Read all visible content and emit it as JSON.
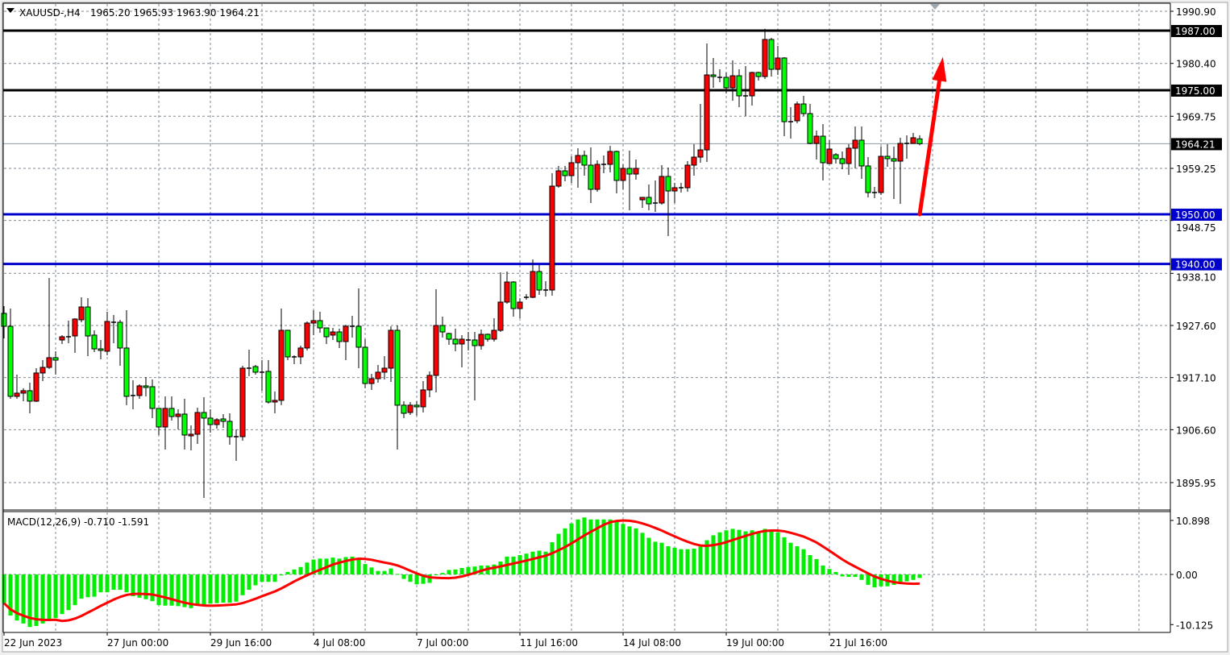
{
  "header": {
    "symbol": "XAUUSD-,H4",
    "ohlc": "1965.20 1965.93 1963.90 1964.21"
  },
  "colors": {
    "bull_body": "#ff0000",
    "bear_body": "#00ff00",
    "wick": "#000000",
    "resistance_line": "#000000",
    "support_line": "#0000cc",
    "arrow": "#ff0000",
    "macd_hist": "#00ee00",
    "macd_signal": "#ff0000",
    "grid": "#7b8a99"
  },
  "icons": {
    "menu": "triangle-down-icon",
    "shift_marker": "triangle-down-icon"
  },
  "chart_data": [
    {
      "type": "candlestick",
      "timeframe": "H4",
      "ylim": [
        1890.6,
        1992.4
      ],
      "grid": true,
      "price_ticks": [
        "1990.90",
        "1980.40",
        "1969.75",
        "1959.25",
        "1948.75",
        "1938.10",
        "1927.60",
        "1917.10",
        "1906.60",
        "1895.95"
      ],
      "x_labels": [
        "22 Jun 2023",
        "27 Jun 00:00",
        "29 Jun 16:00",
        "4 Jul 08:00",
        "7 Jul 00:00",
        "11 Jul 16:00",
        "14 Jul 08:00",
        "19 Jul 00:00",
        "21 Jul 16:00"
      ],
      "x_label_every_bars": 16,
      "current_price": "1964.21",
      "hlines": [
        {
          "price": 1987.0,
          "label": "1987.00",
          "kind": "resistance"
        },
        {
          "price": 1975.0,
          "label": "1975.00",
          "kind": "resistance"
        },
        {
          "price": 1950.0,
          "label": "1950.00",
          "kind": "support"
        },
        {
          "price": 1940.0,
          "label": "1940.00",
          "kind": "support"
        }
      ],
      "arrow": {
        "from": {
          "bar": 142,
          "price": 1950.0
        },
        "to": {
          "bar": 145.6,
          "price": 1981.7
        }
      },
      "ohlc": [
        [
          1930.04,
          1931.5,
          1925.01,
          1927.44
        ],
        [
          1927.44,
          1931.01,
          1912.83,
          1913.32
        ],
        [
          1913.32,
          1917.7,
          1912.83,
          1913.97
        ],
        [
          1913.97,
          1914.95,
          1912.35,
          1914.46
        ],
        [
          1914.46,
          1916.08,
          1909.91,
          1912.35
        ],
        [
          1912.35,
          1919.0,
          1912.18,
          1918.03
        ],
        [
          1918.03,
          1920.62,
          1916.4,
          1919.16
        ],
        [
          1919.16,
          1937.18,
          1918.84,
          1921.11
        ],
        [
          1921.11,
          1922.41,
          1917.7,
          1920.62
        ],
        [
          1924.68,
          1925.66,
          1923.87,
          1925.33
        ],
        [
          1925.33,
          1928.58,
          1924.03,
          1925.33
        ],
        [
          1925.49,
          1929.06,
          1922.08,
          1928.9
        ],
        [
          1928.74,
          1933.28,
          1928.25,
          1931.33
        ],
        [
          1931.33,
          1933.12,
          1921.43,
          1925.49
        ],
        [
          1925.66,
          1926.63,
          1922.25,
          1922.89
        ],
        [
          1922.89,
          1924.68,
          1920.78,
          1922.57
        ],
        [
          1922.41,
          1930.36,
          1921.6,
          1928.41
        ],
        [
          1928.25,
          1929.71,
          1924.03,
          1928.25
        ],
        [
          1928.25,
          1928.74,
          1919.49,
          1923.06
        ],
        [
          1923.06,
          1930.69,
          1911.54,
          1913.32
        ],
        [
          1913.49,
          1916.56,
          1910.72,
          1913.49
        ],
        [
          1913.49,
          1915.75,
          1912.83,
          1915.43
        ],
        [
          1915.43,
          1917.21,
          1913.32,
          1915.11
        ],
        [
          1915.27,
          1916.73,
          1908.94,
          1910.89
        ],
        [
          1910.89,
          1910.89,
          1905.53,
          1907.15
        ],
        [
          1907.15,
          1913.32,
          1902.61,
          1910.89
        ],
        [
          1910.89,
          1913.32,
          1908.45,
          1909.26
        ],
        [
          1909.26,
          1910.72,
          1906.66,
          1909.75
        ],
        [
          1909.75,
          1912.83,
          1902.61,
          1905.53
        ],
        [
          1905.36,
          1907.48,
          1902.45,
          1905.69
        ],
        [
          1905.69,
          1911.05,
          1903.74,
          1910.07
        ],
        [
          1910.07,
          1913.16,
          1892.87,
          1908.94
        ],
        [
          1908.94,
          1910.72,
          1906.02,
          1907.64
        ],
        [
          1907.64,
          1908.94,
          1906.83,
          1908.61
        ],
        [
          1908.77,
          1909.75,
          1906.99,
          1908.29
        ],
        [
          1908.29,
          1909.91,
          1903.58,
          1905.2
        ],
        [
          1905.2,
          1906.66,
          1900.33,
          1905.2
        ],
        [
          1905.2,
          1919.49,
          1904.39,
          1919.0
        ],
        [
          1919.0,
          1922.73,
          1917.38,
          1919.0
        ],
        [
          1919.32,
          1919.65,
          1917.7,
          1918.19
        ],
        [
          1918.19,
          1920.62,
          1914.46,
          1918.19
        ],
        [
          1918.35,
          1920.62,
          1911.86,
          1912.18
        ],
        [
          1912.18,
          1914.3,
          1909.91,
          1912.51
        ],
        [
          1912.51,
          1931.01,
          1911.54,
          1926.63
        ],
        [
          1926.63,
          1926.63,
          1920.62,
          1921.27
        ],
        [
          1921.27,
          1921.6,
          1919.81,
          1921.27
        ],
        [
          1921.27,
          1923.54,
          1919.81,
          1923.06
        ],
        [
          1923.06,
          1928.41,
          1922.57,
          1928.09
        ],
        [
          1928.09,
          1930.69,
          1925.66,
          1928.58
        ],
        [
          1928.58,
          1930.36,
          1926.14,
          1927.11
        ],
        [
          1927.11,
          1927.11,
          1923.87,
          1925.33
        ],
        [
          1925.66,
          1927.11,
          1924.68,
          1926.3
        ],
        [
          1926.3,
          1926.96,
          1923.06,
          1924.36
        ],
        [
          1924.36,
          1927.76,
          1920.62,
          1927.44
        ],
        [
          1927.44,
          1929.55,
          1925.17,
          1927.44
        ],
        [
          1927.44,
          1935.07,
          1919.0,
          1923.22
        ],
        [
          1923.22,
          1924.84,
          1914.95,
          1915.91
        ],
        [
          1915.91,
          1917.86,
          1914.62,
          1916.89
        ],
        [
          1916.89,
          1919.65,
          1916.08,
          1918.19
        ],
        [
          1918.19,
          1921.43,
          1916.73,
          1919.0
        ],
        [
          1919.0,
          1927.44,
          1916.24,
          1926.63
        ],
        [
          1926.63,
          1927.6,
          1902.61,
          1911.54
        ],
        [
          1911.54,
          1912.35,
          1908.94,
          1909.91
        ],
        [
          1910.07,
          1912.18,
          1909.59,
          1911.54
        ],
        [
          1911.54,
          1912.35,
          1909.42,
          1911.21
        ],
        [
          1911.21,
          1916.4,
          1910.07,
          1914.62
        ],
        [
          1914.62,
          1918.35,
          1913.16,
          1917.54
        ],
        [
          1917.54,
          1934.91,
          1914.13,
          1927.6
        ],
        [
          1927.6,
          1929.39,
          1925.17,
          1926.3
        ],
        [
          1925.98,
          1926.14,
          1923.7,
          1924.84
        ],
        [
          1924.84,
          1926.96,
          1922.41,
          1923.87
        ],
        [
          1923.87,
          1925.66,
          1919.16,
          1924.84
        ],
        [
          1924.68,
          1926.3,
          1922.57,
          1924.68
        ],
        [
          1924.68,
          1926.3,
          1912.51,
          1923.54
        ],
        [
          1923.54,
          1926.79,
          1922.73,
          1925.82
        ],
        [
          1925.82,
          1925.98,
          1924.36,
          1924.84
        ],
        [
          1924.84,
          1929.06,
          1924.36,
          1926.63
        ],
        [
          1926.63,
          1938.31,
          1926.3,
          1932.31
        ],
        [
          1932.31,
          1938.47,
          1931.98,
          1936.36
        ],
        [
          1936.36,
          1936.53,
          1929.39,
          1931.01
        ],
        [
          1931.01,
          1933.12,
          1929.06,
          1932.31
        ],
        [
          1933.28,
          1933.93,
          1932.79,
          1933.28
        ],
        [
          1933.28,
          1940.91,
          1933.12,
          1938.47
        ],
        [
          1938.47,
          1939.77,
          1933.77,
          1934.74
        ],
        [
          1934.74,
          1936.53,
          1933.44,
          1934.74
        ],
        [
          1934.74,
          1958.28,
          1933.61,
          1955.68
        ],
        [
          1955.68,
          1959.74,
          1955.35,
          1958.76
        ],
        [
          1958.76,
          1959.74,
          1956.65,
          1957.79
        ],
        [
          1957.79,
          1961.68,
          1956.33,
          1960.39
        ],
        [
          1960.39,
          1963.31,
          1955.35,
          1961.85
        ],
        [
          1961.85,
          1962.82,
          1957.79,
          1959.9
        ],
        [
          1959.9,
          1963.47,
          1952.27,
          1955.03
        ],
        [
          1955.03,
          1960.87,
          1954.54,
          1960.06
        ],
        [
          1960.06,
          1961.85,
          1958.28,
          1960.06
        ],
        [
          1960.06,
          1963.79,
          1958.44,
          1962.66
        ],
        [
          1962.66,
          1962.82,
          1954.22,
          1956.82
        ],
        [
          1956.82,
          1960.06,
          1955.03,
          1959.25
        ],
        [
          1959.25,
          1962.82,
          1950.81,
          1958.11
        ],
        [
          1958.11,
          1961.04,
          1956.98,
          1959.25
        ],
        [
          1952.92,
          1953.41,
          1951.3,
          1953.41
        ],
        [
          1953.41,
          1956.0,
          1950.81,
          1952.11
        ],
        [
          1952.27,
          1956.82,
          1950.48,
          1952.27
        ],
        [
          1952.27,
          1959.9,
          1951.95,
          1957.63
        ],
        [
          1957.63,
          1959.41,
          1945.62,
          1954.7
        ],
        [
          1954.7,
          1956.33,
          1952.27,
          1955.35
        ],
        [
          1955.35,
          1956.33,
          1954.38,
          1955.35
        ],
        [
          1955.35,
          1960.71,
          1954.54,
          1959.9
        ],
        [
          1959.9,
          1964.12,
          1957.79,
          1961.52
        ],
        [
          1961.52,
          1972.23,
          1960.39,
          1962.98
        ],
        [
          1962.98,
          1984.41,
          1960.55,
          1978.08
        ],
        [
          1978.08,
          1981.49,
          1975.48,
          1977.75
        ],
        [
          1977.59,
          1979.21,
          1976.62,
          1977.59
        ],
        [
          1977.59,
          1978.56,
          1974.34,
          1975.48
        ],
        [
          1975.48,
          1981.0,
          1972.88,
          1977.91
        ],
        [
          1977.91,
          1979.21,
          1971.59,
          1973.86
        ],
        [
          1973.86,
          1979.86,
          1969.8,
          1973.86
        ],
        [
          1973.86,
          1978.72,
          1971.91,
          1978.56
        ],
        [
          1978.56,
          1978.72,
          1976.94,
          1977.75
        ],
        [
          1977.75,
          1987.4,
          1977.26,
          1985.22
        ],
        [
          1985.22,
          1985.54,
          1977.75,
          1979.21
        ],
        [
          1979.21,
          1983.92,
          1978.08,
          1981.49
        ],
        [
          1981.49,
          1981.65,
          1965.74,
          1968.66
        ],
        [
          1968.66,
          1971.59,
          1965.25,
          1968.66
        ],
        [
          1968.83,
          1972.72,
          1968.34,
          1972.23
        ],
        [
          1972.23,
          1973.86,
          1969.8,
          1970.29
        ],
        [
          1970.29,
          1972.23,
          1964.12,
          1964.28
        ],
        [
          1964.28,
          1966.88,
          1961.03,
          1965.74
        ],
        [
          1965.74,
          1968.18,
          1956.82,
          1960.39
        ],
        [
          1960.22,
          1964.93,
          1960.22,
          1963.14
        ],
        [
          1962.01,
          1962.33,
          1960.22,
          1961.2
        ],
        [
          1961.2,
          1962.66,
          1959.09,
          1960.22
        ],
        [
          1960.22,
          1964.12,
          1957.95,
          1963.31
        ],
        [
          1963.31,
          1967.69,
          1959.25,
          1964.93
        ],
        [
          1964.93,
          1967.69,
          1957.14,
          1959.74
        ],
        [
          1959.74,
          1961.52,
          1953.41,
          1954.38
        ],
        [
          1954.38,
          1955.52,
          1953.24,
          1954.38
        ],
        [
          1954.38,
          1963.63,
          1953.89,
          1961.68
        ],
        [
          1961.68,
          1964.12,
          1959.58,
          1961.2
        ],
        [
          1961.2,
          1963.63,
          1953.08,
          1960.71
        ],
        [
          1960.71,
          1965.42,
          1952.11,
          1964.28
        ],
        [
          1964.28,
          1965.9,
          1961.2,
          1964.28
        ],
        [
          1964.28,
          1966.39,
          1964.23,
          1965.42
        ],
        [
          1965.2,
          1965.93,
          1963.9,
          1964.21
        ]
      ]
    },
    {
      "type": "bar",
      "indicator": "MACD(12,26,9) -0.710 -1.591",
      "signal_period": 9,
      "ylim": [
        -10.9,
        11.2
      ],
      "y_ticks": [
        "10.898",
        "0.00",
        "-10.125"
      ],
      "y_tick_values": [
        10.898,
        0,
        -10.125
      ],
      "histogram": [
        -5.8,
        -8.3,
        -9.3,
        -9.9,
        -10.6,
        -10.4,
        -9.9,
        -9.3,
        -8.8,
        -8.0,
        -7.2,
        -6.2,
        -4.9,
        -4.6,
        -4.5,
        -3.6,
        -3.6,
        -3.1,
        -3.1,
        -3.6,
        -4.4,
        -4.7,
        -5.0,
        -5.4,
        -6.2,
        -6.3,
        -6.3,
        -6.4,
        -6.6,
        -6.8,
        -6.3,
        -6.1,
        -5.9,
        -5.8,
        -5.7,
        -5.7,
        -5.5,
        -4.2,
        -3.1,
        -2.2,
        -1.5,
        -1.5,
        -1.5,
        -0.2,
        0.5,
        1.0,
        1.5,
        2.4,
        3.0,
        3.2,
        3.2,
        3.4,
        3.2,
        3.5,
        3.6,
        3.0,
        2.1,
        1.4,
        0.7,
        0.7,
        1.2,
        0.1,
        -0.9,
        -1.5,
        -2.0,
        -1.9,
        -1.7,
        -0.1,
        0.3,
        0.9,
        1.0,
        1.3,
        1.5,
        1.6,
        1.8,
        1.8,
        2.0,
        2.6,
        3.6,
        3.6,
        3.9,
        4.2,
        4.6,
        4.8,
        4.6,
        6.5,
        8.2,
        9.3,
        10.3,
        11.1,
        11.5,
        11.1,
        11.1,
        11.1,
        11.1,
        10.6,
        10.2,
        9.7,
        9.3,
        8.4,
        7.4,
        6.6,
        6.4,
        5.7,
        5.4,
        5.1,
        5.1,
        5.2,
        5.6,
        6.9,
        7.9,
        8.5,
        8.9,
        9.2,
        9.0,
        8.7,
        8.9,
        8.7,
        9.2,
        8.7,
        8.5,
        7.5,
        6.4,
        5.7,
        5.1,
        3.9,
        3.1,
        1.8,
        1.1,
        0.5,
        -0.4,
        -0.5,
        -0.5,
        -1.1,
        -2.1,
        -2.6,
        -2.4,
        -2.4,
        -2.1,
        -1.9,
        -1.4,
        -1.1,
        -0.71
      ]
    }
  ]
}
